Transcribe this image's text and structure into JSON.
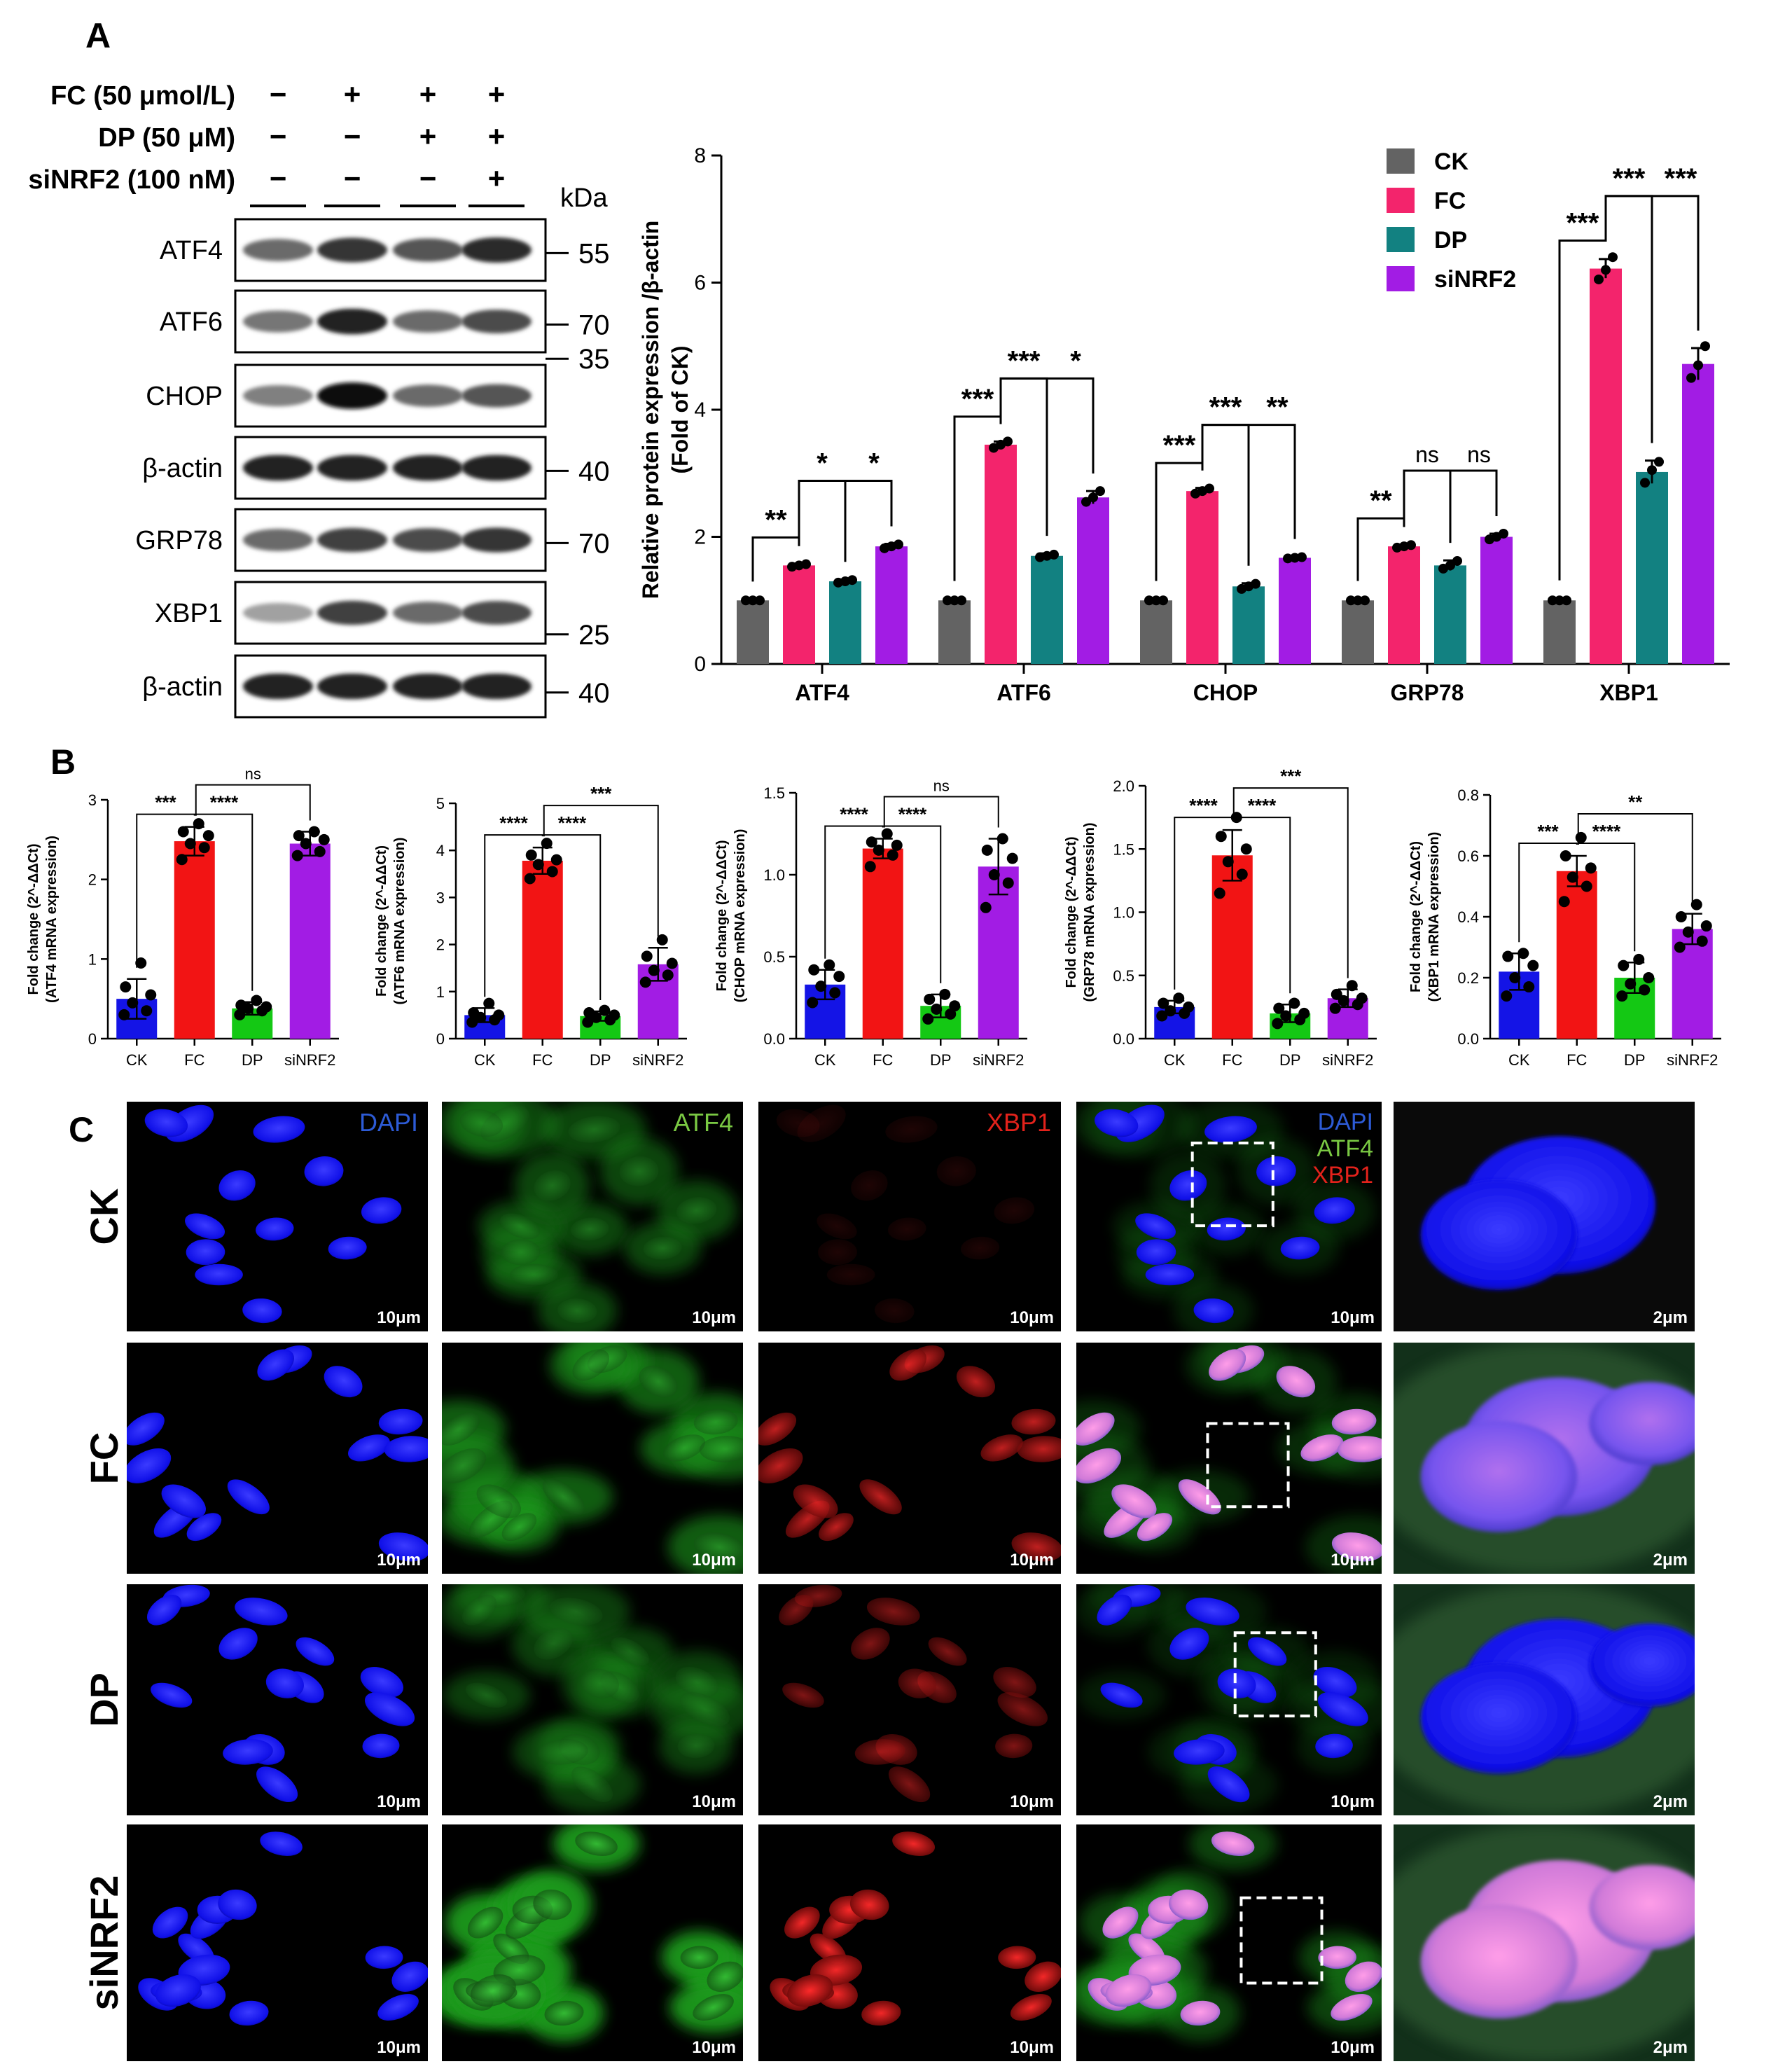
{
  "panel_labels": [
    "A",
    "B",
    "C"
  ],
  "blot": {
    "treatments": [
      {
        "label": "FC (50 μmol/L)",
        "signs": [
          "−",
          "+",
          "+",
          "+"
        ]
      },
      {
        "label": "DP (50 μM)",
        "signs": [
          "−",
          "−",
          "+",
          "+"
        ]
      },
      {
        "label": "siNRF2 (100 nM)",
        "signs": [
          "−",
          "−",
          "−",
          "+"
        ]
      }
    ],
    "kda_label": "kDa",
    "rows": [
      {
        "name": "ATF4",
        "markers": [
          "55"
        ],
        "intensity": [
          0.55,
          0.8,
          0.65,
          0.85
        ]
      },
      {
        "name": "ATF6",
        "markers": [
          "70"
        ],
        "intensity": [
          0.5,
          0.9,
          0.55,
          0.7
        ]
      },
      {
        "name": "CHOP",
        "markers": [
          "35"
        ],
        "intensity": [
          0.45,
          1.0,
          0.55,
          0.65
        ]
      },
      {
        "name": "β-actin",
        "markers": [
          "40"
        ],
        "intensity": [
          0.9,
          0.9,
          0.9,
          0.9
        ]
      },
      {
        "name": "GRP78",
        "markers": [
          "70"
        ],
        "intensity": [
          0.55,
          0.75,
          0.7,
          0.8
        ]
      },
      {
        "name": "XBP1",
        "markers": [
          "25"
        ],
        "intensity": [
          0.3,
          0.75,
          0.55,
          0.7
        ]
      },
      {
        "name": "β-actin",
        "markers": [
          "40"
        ],
        "intensity": [
          0.9,
          0.9,
          0.9,
          0.9
        ]
      }
    ]
  },
  "chart_data": [
    {
      "type": "bar",
      "ylabel": "Relative protein expression /β-actin\n(Fold of CK)",
      "ylim": [
        0,
        8
      ],
      "yticks": [
        0,
        2,
        4,
        6,
        8
      ],
      "categories": [
        "ATF4",
        "ATF6",
        "CHOP",
        "GRP78",
        "XBP1"
      ],
      "legend_position": "top-right",
      "series": [
        {
          "name": "CK",
          "color": "#636363",
          "values": [
            1.0,
            1.0,
            1.0,
            1.0,
            1.0
          ],
          "errors": [
            0.02,
            0.03,
            0.03,
            0.03,
            0.04
          ]
        },
        {
          "name": "FC",
          "color": "#f3246c",
          "values": [
            1.55,
            3.45,
            2.72,
            1.85,
            6.22
          ],
          "errors": [
            0.03,
            0.05,
            0.05,
            0.03,
            0.15
          ]
        },
        {
          "name": "DP",
          "color": "#128181",
          "values": [
            1.3,
            1.7,
            1.22,
            1.55,
            3.02
          ],
          "errors": [
            0.03,
            0.04,
            0.05,
            0.08,
            0.18
          ]
        },
        {
          "name": "siNRF2",
          "color": "#a21ce4",
          "values": [
            1.85,
            2.62,
            1.67,
            2.0,
            4.72
          ],
          "errors": [
            0.04,
            0.1,
            0.02,
            0.05,
            0.25
          ]
        }
      ],
      "points": [
        [
          [
            1.0,
            1.0,
            1.0
          ],
          [
            1.0,
            1.0,
            1.0
          ],
          [
            1.0,
            1.0,
            1.0
          ],
          [
            1.0,
            1.0,
            1.0
          ],
          [
            1.0,
            1.0,
            1.0
          ]
        ],
        [
          [
            1.53,
            1.55,
            1.57
          ],
          [
            3.4,
            3.45,
            3.5
          ],
          [
            2.68,
            2.72,
            2.76
          ],
          [
            1.83,
            1.85,
            1.87
          ],
          [
            6.05,
            6.2,
            6.4
          ]
        ],
        [
          [
            1.28,
            1.3,
            1.32
          ],
          [
            1.68,
            1.7,
            1.72
          ],
          [
            1.18,
            1.22,
            1.26
          ],
          [
            1.5,
            1.55,
            1.62
          ],
          [
            2.85,
            3.05,
            3.18
          ]
        ],
        [
          [
            1.82,
            1.85,
            1.88
          ],
          [
            2.55,
            2.62,
            2.72
          ],
          [
            1.66,
            1.67,
            1.68
          ],
          [
            1.96,
            2.0,
            2.05
          ],
          [
            4.5,
            4.7,
            5.0
          ]
        ]
      ],
      "annotations": [
        {
          "group": 0,
          "pair": [
            0,
            1
          ],
          "label": "**"
        },
        {
          "group": 0,
          "pair": [
            1,
            2
          ],
          "label": "*"
        },
        {
          "group": 0,
          "pair": [
            1,
            3
          ],
          "label": "*"
        },
        {
          "group": 1,
          "pair": [
            0,
            1
          ],
          "label": "***"
        },
        {
          "group": 1,
          "pair": [
            1,
            2
          ],
          "label": "***"
        },
        {
          "group": 1,
          "pair": [
            1,
            3
          ],
          "label": "*"
        },
        {
          "group": 2,
          "pair": [
            0,
            1
          ],
          "label": "***"
        },
        {
          "group": 2,
          "pair": [
            1,
            2
          ],
          "label": "***"
        },
        {
          "group": 2,
          "pair": [
            1,
            3
          ],
          "label": "**"
        },
        {
          "group": 3,
          "pair": [
            0,
            1
          ],
          "label": "**"
        },
        {
          "group": 3,
          "pair": [
            1,
            2
          ],
          "label": "ns"
        },
        {
          "group": 3,
          "pair": [
            1,
            3
          ],
          "label": "ns"
        },
        {
          "group": 4,
          "pair": [
            0,
            1
          ],
          "label": "***"
        },
        {
          "group": 4,
          "pair": [
            1,
            2
          ],
          "label": "***"
        },
        {
          "group": 4,
          "pair": [
            1,
            3
          ],
          "label": "***"
        }
      ]
    },
    {
      "type": "bar",
      "ylabel": "Fold change (2^-ΔΔCt)\n(ATF4 mRNA expression)",
      "ylim": [
        0,
        3
      ],
      "yticks": [
        0,
        1,
        2,
        3
      ],
      "categories": [
        "CK",
        "FC",
        "DP",
        "siNRF2"
      ],
      "colors": [
        "#1414e6",
        "#f21414",
        "#14c814",
        "#a21ce4"
      ],
      "values": [
        0.5,
        2.48,
        0.38,
        2.45
      ],
      "errors": [
        0.25,
        0.18,
        0.08,
        0.15
      ],
      "points": [
        [
          0.3,
          0.35,
          0.45,
          0.55,
          0.65,
          0.95
        ],
        [
          2.25,
          2.4,
          2.45,
          2.55,
          2.6,
          2.7
        ],
        [
          0.3,
          0.35,
          0.38,
          0.4,
          0.42,
          0.48
        ],
        [
          2.3,
          2.35,
          2.45,
          2.5,
          2.55,
          2.6
        ]
      ],
      "annotations": [
        {
          "pair": [
            0,
            1
          ],
          "label": "***"
        },
        {
          "pair": [
            1,
            2
          ],
          "label": "****"
        },
        {
          "pair": [
            1,
            3
          ],
          "label": "ns"
        }
      ]
    },
    {
      "type": "bar",
      "ylabel": "Fold change (2^-ΔΔCt)\n(ATF6 mRNA expression)",
      "ylim": [
        0,
        5
      ],
      "yticks": [
        0,
        1,
        2,
        3,
        4,
        5
      ],
      "categories": [
        "CK",
        "FC",
        "DP",
        "siNRF2"
      ],
      "colors": [
        "#1414e6",
        "#f21414",
        "#14c814",
        "#a21ce4"
      ],
      "values": [
        0.5,
        3.78,
        0.48,
        1.58
      ],
      "errors": [
        0.15,
        0.28,
        0.1,
        0.35
      ],
      "points": [
        [
          0.35,
          0.4,
          0.45,
          0.5,
          0.55,
          0.75
        ],
        [
          3.4,
          3.55,
          3.7,
          3.8,
          3.9,
          4.15
        ],
        [
          0.35,
          0.4,
          0.45,
          0.5,
          0.55,
          0.6
        ],
        [
          1.2,
          1.35,
          1.45,
          1.6,
          1.75,
          2.1
        ]
      ],
      "annotations": [
        {
          "pair": [
            0,
            1
          ],
          "label": "****"
        },
        {
          "pair": [
            1,
            2
          ],
          "label": "****"
        },
        {
          "pair": [
            1,
            3
          ],
          "label": "***"
        }
      ]
    },
    {
      "type": "bar",
      "ylabel": "Fold change (2^-ΔΔCt)\n(CHOP mRNA expression)",
      "ylim": [
        0,
        1.5
      ],
      "yticks": [
        0.0,
        0.5,
        1.0,
        1.5
      ],
      "categories": [
        "CK",
        "FC",
        "DP",
        "siNRF2"
      ],
      "colors": [
        "#1414e6",
        "#f21414",
        "#14c814",
        "#a21ce4"
      ],
      "values": [
        0.33,
        1.16,
        0.2,
        1.05
      ],
      "errors": [
        0.09,
        0.06,
        0.07,
        0.17
      ],
      "points": [
        [
          0.22,
          0.28,
          0.32,
          0.38,
          0.42,
          0.45
        ],
        [
          1.05,
          1.12,
          1.15,
          1.18,
          1.2,
          1.25
        ],
        [
          0.12,
          0.15,
          0.18,
          0.2,
          0.24,
          0.27
        ],
        [
          0.8,
          0.95,
          1.0,
          1.1,
          1.15,
          1.22
        ]
      ],
      "annotations": [
        {
          "pair": [
            0,
            1
          ],
          "label": "****"
        },
        {
          "pair": [
            1,
            2
          ],
          "label": "****"
        },
        {
          "pair": [
            1,
            3
          ],
          "label": "ns"
        }
      ]
    },
    {
      "type": "bar",
      "ylabel": "Fold change (2^-ΔΔCt)\n(GRP78 mRNA expression)",
      "ylim": [
        0,
        2.0
      ],
      "yticks": [
        0.0,
        0.5,
        1.0,
        1.5,
        2.0
      ],
      "categories": [
        "CK",
        "FC",
        "DP",
        "siNRF2"
      ],
      "colors": [
        "#1414e6",
        "#f21414",
        "#14c814",
        "#a21ce4"
      ],
      "values": [
        0.25,
        1.45,
        0.2,
        0.32
      ],
      "errors": [
        0.05,
        0.2,
        0.07,
        0.07
      ],
      "points": [
        [
          0.18,
          0.2,
          0.22,
          0.25,
          0.28,
          0.32
        ],
        [
          1.15,
          1.3,
          1.4,
          1.5,
          1.6,
          1.75
        ],
        [
          0.12,
          0.15,
          0.18,
          0.2,
          0.24,
          0.28
        ],
        [
          0.24,
          0.27,
          0.3,
          0.32,
          0.35,
          0.42
        ]
      ],
      "annotations": [
        {
          "pair": [
            0,
            1
          ],
          "label": "****"
        },
        {
          "pair": [
            1,
            2
          ],
          "label": "****"
        },
        {
          "pair": [
            1,
            3
          ],
          "label": "***"
        }
      ]
    },
    {
      "type": "bar",
      "ylabel": "Fold change (2^-ΔΔCt)\n(XBP1 mRNA expression)",
      "ylim": [
        0,
        0.8
      ],
      "yticks": [
        0.0,
        0.2,
        0.4,
        0.6,
        0.8
      ],
      "categories": [
        "CK",
        "FC",
        "DP",
        "siNRF2"
      ],
      "colors": [
        "#1414e6",
        "#f21414",
        "#14c814",
        "#a21ce4"
      ],
      "values": [
        0.22,
        0.55,
        0.2,
        0.36
      ],
      "errors": [
        0.06,
        0.05,
        0.05,
        0.05
      ],
      "points": [
        [
          0.14,
          0.17,
          0.2,
          0.24,
          0.27,
          0.28
        ],
        [
          0.45,
          0.5,
          0.53,
          0.56,
          0.6,
          0.66
        ],
        [
          0.14,
          0.16,
          0.18,
          0.2,
          0.24,
          0.26
        ],
        [
          0.3,
          0.32,
          0.35,
          0.37,
          0.4,
          0.44
        ]
      ],
      "annotations": [
        {
          "pair": [
            0,
            1
          ],
          "label": "***"
        },
        {
          "pair": [
            1,
            2
          ],
          "label": "****"
        },
        {
          "pair": [
            1,
            3
          ],
          "label": "**"
        }
      ]
    }
  ],
  "microscopy": {
    "rows": [
      "CK",
      "FC",
      "DP",
      "siNRF2"
    ],
    "columns": [
      {
        "label": "DAPI",
        "color": "#2d5bd6"
      },
      {
        "label": "ATF4",
        "color": "#7ac943"
      },
      {
        "label": "XBP1",
        "color": "#e3221b"
      },
      {
        "label": "merge",
        "labels": [
          "DAPI",
          "ATF4",
          "XBP1"
        ]
      },
      {
        "label": "zoom"
      }
    ],
    "merge_labels": [
      "DAPI",
      "ATF4",
      "XBP1"
    ],
    "scale_labels": [
      "10μm",
      "10μm",
      "10μm",
      "10μm",
      "2μm"
    ]
  }
}
